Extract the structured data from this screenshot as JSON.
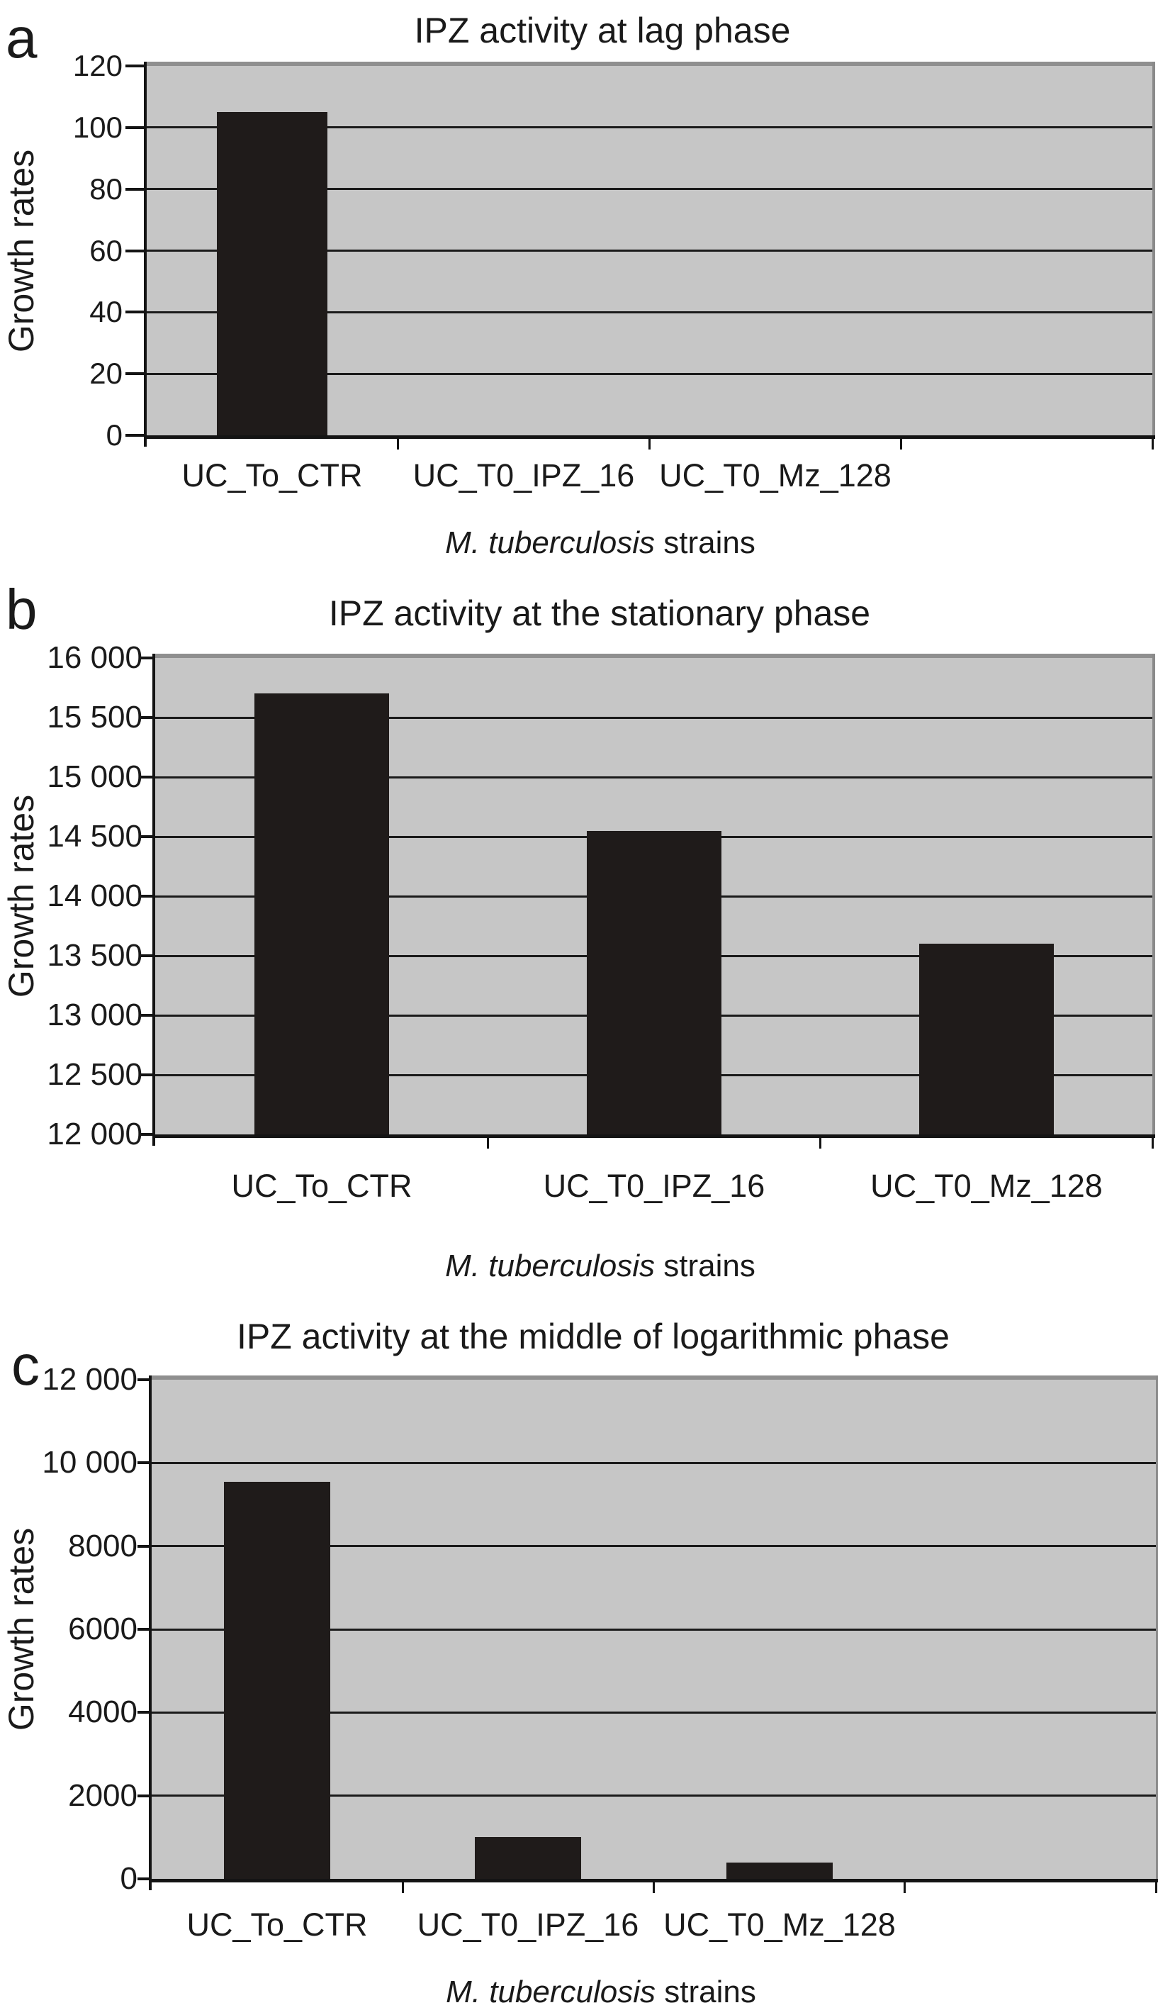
{
  "figure_type": "three-panel bar chart figure",
  "colors": {
    "page_bg": "#ffffff",
    "plot_bg": "#c6c6c6",
    "bar": "#1f1b1a",
    "grid_line": "#1a1a1a",
    "axis": "#141414",
    "plot_border_gray": "#8f8f8f",
    "text": "#1a1a1a"
  },
  "chart_data": [
    {
      "type": "bar",
      "panel_label": "a",
      "title": "IPZ activity at lag phase",
      "ylabel": "Growth rates",
      "xlabel_italic": "M. tuberculosis",
      "xlabel_rest": " strains",
      "categories": [
        "UC_To_CTR",
        "UC_T0_IPZ_16",
        "UC_T0_Mz_128"
      ],
      "values": [
        105,
        0,
        0
      ],
      "ylim": [
        0,
        120
      ],
      "grid": true,
      "legend": "none",
      "category_slots": 4,
      "yticks": [
        {
          "value": 120,
          "label": "120"
        },
        {
          "value": 100,
          "label": "100"
        },
        {
          "value": 80,
          "label": "80"
        },
        {
          "value": 60,
          "label": "60"
        },
        {
          "value": 40,
          "label": "40"
        },
        {
          "value": 20,
          "label": "20"
        },
        {
          "value": 0,
          "label": "0"
        }
      ]
    },
    {
      "type": "bar",
      "panel_label": "b",
      "title": "IPZ activity at the stationary phase",
      "ylabel": "Growth rates",
      "xlabel_italic": "M. tuberculosis",
      "xlabel_rest": " strains",
      "categories": [
        "UC_To_CTR",
        "UC_T0_IPZ_16",
        "UC_T0_Mz_128"
      ],
      "values": [
        15700,
        14550,
        13600
      ],
      "ylim": [
        12000,
        16000
      ],
      "grid": true,
      "legend": "none",
      "category_slots": 3,
      "yticks": [
        {
          "value": 16000,
          "label": "16 000"
        },
        {
          "value": 15500,
          "label": "15 500"
        },
        {
          "value": 15000,
          "label": "15 000"
        },
        {
          "value": 14500,
          "label": "14 500"
        },
        {
          "value": 14000,
          "label": "14 000"
        },
        {
          "value": 13500,
          "label": "13 500"
        },
        {
          "value": 13000,
          "label": "13 000"
        },
        {
          "value": 12500,
          "label": "12 500"
        },
        {
          "value": 12000,
          "label": "12 000"
        }
      ]
    },
    {
      "type": "bar",
      "panel_label": "c",
      "title": "IPZ activity at the middle of logarithmic phase",
      "ylabel": "Growth rates",
      "xlabel_italic": "M. tuberculosis",
      "xlabel_rest": " strains",
      "categories": [
        "UC_To_CTR",
        "UC_T0_IPZ_16",
        "UC_T0_Mz_128"
      ],
      "values": [
        9550,
        1000,
        400
      ],
      "ylim": [
        0,
        12000
      ],
      "grid": true,
      "legend": "none",
      "category_slots": 4,
      "yticks": [
        {
          "value": 12000,
          "label": "12 000"
        },
        {
          "value": 10000,
          "label": "10 000"
        },
        {
          "value": 8000,
          "label": "8000"
        },
        {
          "value": 6000,
          "label": "6000"
        },
        {
          "value": 4000,
          "label": "4000"
        },
        {
          "value": 2000,
          "label": "2000"
        },
        {
          "value": 0,
          "label": "0"
        }
      ]
    }
  ]
}
